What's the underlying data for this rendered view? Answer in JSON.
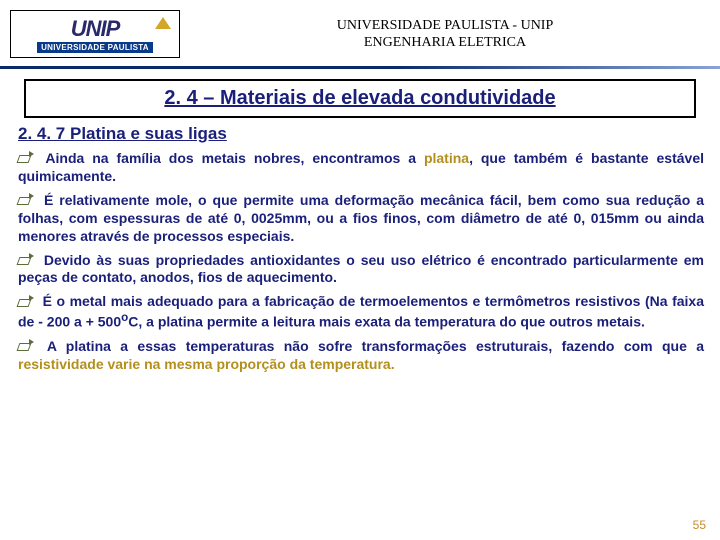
{
  "header": {
    "logo_top": "UNIP",
    "logo_bottom": "UNIVERSIDADE PAULISTA",
    "line1": "UNIVERSIDADE PAULISTA - UNIP",
    "line2": "ENGENHARIA  ELETRICA"
  },
  "heading": "2. 4 – Materiais de elevada condutividade",
  "subheading": "2. 4. 7 Platina e suas ligas",
  "paras": {
    "p1a": "Ainda na família dos metais nobres, encontramos a ",
    "p1b": "platina",
    "p1c": ", que também é bastante estável quimicamente.",
    "p2": "É relativamente mole, o que permite uma deformação mecânica fácil, bem como sua redução a folhas, com espessuras de até 0, 0025mm, ou a fios finos, com diâmetro de até 0, 015mm ou ainda menores através de processos especiais.",
    "p3": "Devido às suas propriedades antioxidantes o seu uso elétrico é encontrado particularmente em peças de contato, anodos, fios de aquecimento.",
    "p4a": "É o metal mais adequado para a fabricação de termoelementos e termômetros resistivos (Na faixa de - 200 a + 500",
    "p4b": "o",
    "p4c": "C, a platina permite a leitura mais exata da temperatura do que outros metais.",
    "p5a": "A platina a essas temperaturas não sofre transformações estruturais, fazendo com que a ",
    "p5b": "resistividade varie na mesma proporção da temperatura."
  },
  "page_number": "55",
  "colors": {
    "text_main": "#1a1f7a",
    "accent": "#b38f1e",
    "rule_dark": "#0b2a6b",
    "page_num": "#c98b2a"
  }
}
